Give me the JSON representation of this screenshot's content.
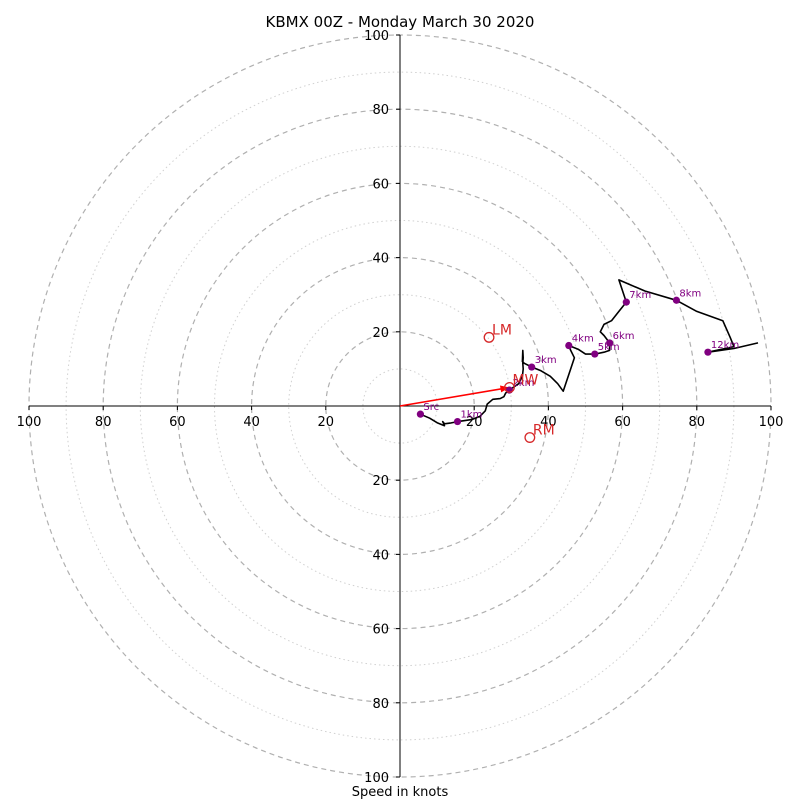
{
  "chart_data": {
    "type": "hodograph",
    "title": "KBMX 00Z - Monday March 30 2020",
    "xlabel": "Speed in knots",
    "xlim": [
      -100,
      100
    ],
    "ylim": [
      -100,
      100
    ],
    "ring_labels_major": [
      20,
      40,
      60,
      80,
      100
    ],
    "ring_radii_minor": [
      10,
      30,
      50,
      70,
      90
    ],
    "axis_ticks": {
      "x_left": [
        "100",
        "80",
        "60",
        "40",
        "20"
      ],
      "x_right": [
        "20",
        "40",
        "60",
        "80",
        "100"
      ],
      "y_top": [
        "20",
        "40",
        "60",
        "80",
        "100"
      ],
      "y_bottom": [
        "20",
        "40",
        "60",
        "80",
        "100"
      ]
    },
    "colors": {
      "trace": "#000000",
      "height_markers": "#800080",
      "motion_markers": "#d62728",
      "shear_vector": "#ff0000",
      "major_ring": "#b0b0b0",
      "minor_ring": "#d0d0d0"
    },
    "trace": [
      [
        5.5,
        -2.2
      ],
      [
        8,
        -3.3
      ],
      [
        10,
        -4.5
      ],
      [
        12,
        -5.3
      ],
      [
        11.5,
        -4.2
      ],
      [
        12,
        -4.8
      ],
      [
        13.5,
        -4.6
      ],
      [
        15.5,
        -4.2
      ],
      [
        17,
        -4
      ],
      [
        19.5,
        -3.6
      ],
      [
        21.5,
        -2.8
      ],
      [
        23,
        -1.3
      ],
      [
        23.5,
        0.5
      ],
      [
        25,
        1.8
      ],
      [
        27,
        2
      ],
      [
        28,
        2.5
      ],
      [
        28.5,
        3.5
      ],
      [
        29.5,
        4.3
      ],
      [
        30.5,
        5
      ],
      [
        32,
        6
      ],
      [
        33,
        8
      ],
      [
        33.2,
        10
      ],
      [
        33.1,
        11.5
      ],
      [
        33.2,
        13
      ],
      [
        33.1,
        15
      ],
      [
        33,
        12
      ],
      [
        33.5,
        11.5
      ],
      [
        35.5,
        10.5
      ],
      [
        38,
        9.5
      ],
      [
        40.5,
        8
      ],
      [
        42.5,
        6
      ],
      [
        44,
        4
      ],
      [
        46,
        10
      ],
      [
        47,
        13
      ],
      [
        46,
        15
      ],
      [
        45.5,
        16.3
      ],
      [
        48,
        15.3
      ],
      [
        50,
        14
      ],
      [
        52.5,
        14
      ],
      [
        55,
        14.5
      ],
      [
        56.5,
        15
      ],
      [
        56.5,
        17
      ],
      [
        55,
        19
      ],
      [
        54,
        20
      ],
      [
        55,
        22
      ],
      [
        57,
        23
      ],
      [
        59,
        25.5
      ],
      [
        61,
        28
      ],
      [
        59,
        34
      ],
      [
        66,
        31
      ],
      [
        74.5,
        28.5
      ],
      [
        80,
        25.5
      ],
      [
        87,
        23
      ],
      [
        89,
        18.5
      ],
      [
        90,
        16
      ],
      [
        83,
        14.5
      ],
      [
        90,
        15.5
      ],
      [
        96.5,
        17
      ]
    ],
    "height_markers": [
      {
        "label": "Src",
        "x": 5.5,
        "y": -2.2
      },
      {
        "label": "1km",
        "x": 15.5,
        "y": -4.2
      },
      {
        "label": "2km",
        "x": 29.5,
        "y": 4.3
      },
      {
        "label": "3km",
        "x": 35.5,
        "y": 10.5
      },
      {
        "label": "4km",
        "x": 45.5,
        "y": 16.3
      },
      {
        "label": "5km",
        "x": 52.5,
        "y": 14
      },
      {
        "label": "6km",
        "x": 56.5,
        "y": 17
      },
      {
        "label": "7km",
        "x": 61,
        "y": 28
      },
      {
        "label": "8km",
        "x": 74.5,
        "y": 28.5
      },
      {
        "label": "12km",
        "x": 83,
        "y": 14.5
      }
    ],
    "motion_markers": [
      {
        "label": "LM",
        "x": 24,
        "y": 18.5
      },
      {
        "label": "MW",
        "x": 29.5,
        "y": 5
      },
      {
        "label": "RM",
        "x": 35,
        "y": -8.5
      }
    ],
    "shear_vector": {
      "from": [
        0,
        0
      ],
      "to": [
        29.5,
        5
      ]
    }
  }
}
